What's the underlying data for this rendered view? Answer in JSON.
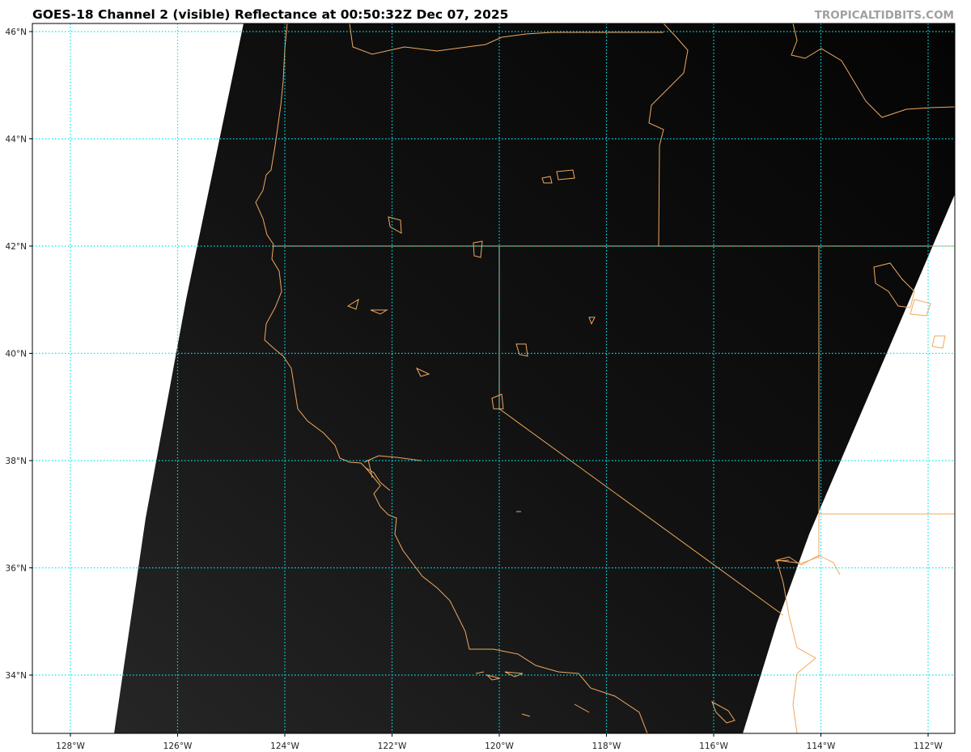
{
  "header": {
    "title": "GOES-18 Channel 2 (visible) Reflectance at 00:50:32Z Dec 07, 2025",
    "credit": "TROPICALTIDBITS.COM"
  },
  "map": {
    "product": "GOES-18 Channel 2 visible reflectance",
    "extent": {
      "lon_min": -128.7,
      "lon_max": -111.5,
      "lat_min": 32.9,
      "lat_max": 46.15
    },
    "gridline_color": "#00e5ee",
    "coastline_color": "#f0a860",
    "background_color": "#ffffff",
    "imagery_color": "#0a0a0a",
    "lat_ticks": [
      {
        "value": 46,
        "label": "46°N"
      },
      {
        "value": 44,
        "label": "44°N"
      },
      {
        "value": 42,
        "label": "42°N"
      },
      {
        "value": 40,
        "label": "40°N"
      },
      {
        "value": 38,
        "label": "38°N"
      },
      {
        "value": 36,
        "label": "36°N"
      },
      {
        "value": 34,
        "label": "34°N"
      }
    ],
    "lon_ticks": [
      {
        "value": -128,
        "label": "128°W"
      },
      {
        "value": -126,
        "label": "126°W"
      },
      {
        "value": -124,
        "label": "124°W"
      },
      {
        "value": -122,
        "label": "122°W"
      },
      {
        "value": -120,
        "label": "120°W"
      },
      {
        "value": -118,
        "label": "118°W"
      },
      {
        "value": -116,
        "label": "116°W"
      },
      {
        "value": -114,
        "label": "114°W"
      },
      {
        "value": -112,
        "label": "112°W"
      }
    ]
  }
}
